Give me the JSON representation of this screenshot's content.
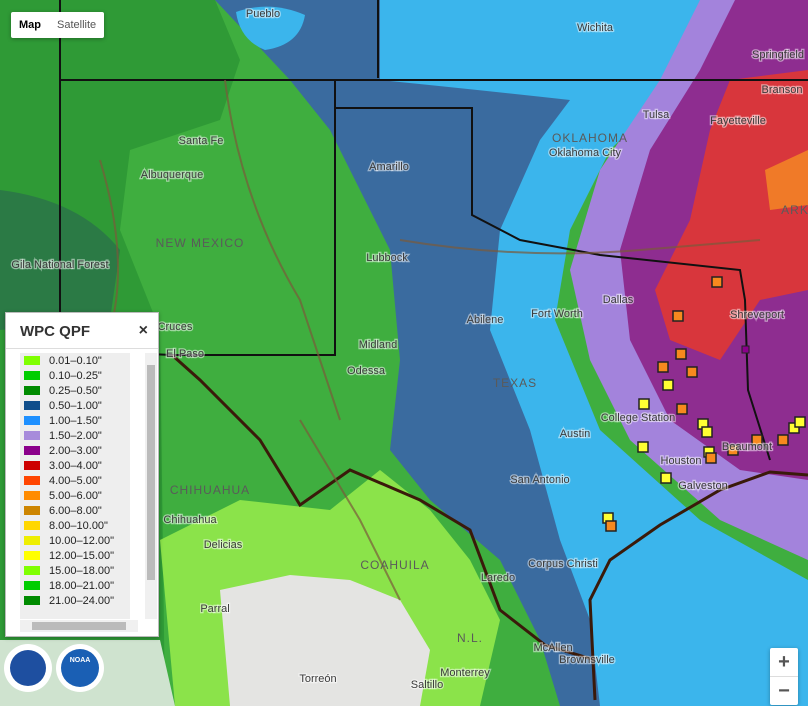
{
  "map_type": {
    "map": "Map",
    "satellite": "Satellite"
  },
  "legend": {
    "title": "WPC QPF",
    "close": "×",
    "items": [
      {
        "label": "0.01–0.10\"",
        "color": "#7fff00"
      },
      {
        "label": "0.10–0.25\"",
        "color": "#00cd00"
      },
      {
        "label": "0.25–0.50\"",
        "color": "#008b00"
      },
      {
        "label": "0.50–1.00\"",
        "color": "#104e8b"
      },
      {
        "label": "1.00–1.50\"",
        "color": "#1e90ff"
      },
      {
        "label": "1.50–2.00\"",
        "color": "#a78bdb"
      },
      {
        "label": "2.00–3.00\"",
        "color": "#8b008b"
      },
      {
        "label": "3.00–4.00\"",
        "color": "#cd0000"
      },
      {
        "label": "4.00–5.00\"",
        "color": "#ff4500"
      },
      {
        "label": "5.00–6.00\"",
        "color": "#ff8c00"
      },
      {
        "label": "6.00–8.00\"",
        "color": "#cd8500"
      },
      {
        "label": "8.00–10.00\"",
        "color": "#ffd700"
      },
      {
        "label": "10.00–12.00\"",
        "color": "#eeee00"
      },
      {
        "label": "12.00–15.00\"",
        "color": "#ffff00"
      },
      {
        "label": "15.00–18.00\"",
        "color": "#7fff00"
      },
      {
        "label": "18.00–21.00\"",
        "color": "#00cd00"
      },
      {
        "label": "21.00–24.00\"",
        "color": "#008b00"
      }
    ]
  },
  "places": {
    "cities": [
      "Pueblo",
      "Wichita",
      "Springfield",
      "Branson",
      "Tulsa",
      "Fayetteville",
      "Santa Fe",
      "Oklahoma City",
      "Albuquerque",
      "Amarillo",
      "Lubbock",
      "Dallas",
      "Fort Worth",
      "Abilene",
      "Shreveport",
      "Cruces",
      "El Paso",
      "Midland",
      "Odessa",
      "College Station",
      "Austin",
      "Houston",
      "Beaumont",
      "Galveston",
      "San Antonio",
      "Chihuahua",
      "Delicias",
      "Corpus Christi",
      "Laredo",
      "Parral",
      "McAllen",
      "Brownsville",
      "Monterrey",
      "Torreón",
      "Saltillo",
      "Gila National Forest"
    ],
    "regions": [
      "NEW MEXICO",
      "OKLAHOMA",
      "TEXAS",
      "CHIHUAHUA",
      "COAHUILA",
      "ARK",
      "N.L."
    ]
  },
  "logo": "NOAA",
  "zoom": {
    "in": "+",
    "out": "−"
  }
}
